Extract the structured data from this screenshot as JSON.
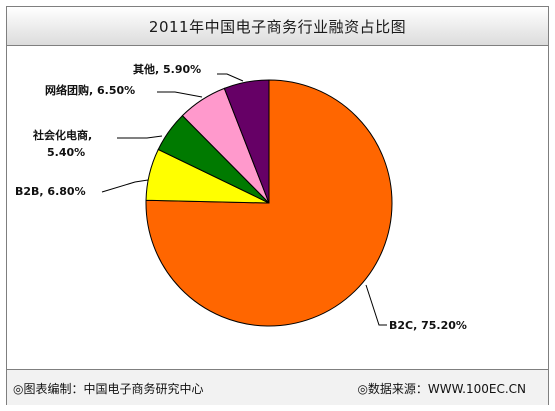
{
  "chart_data": {
    "type": "pie",
    "title": "2011年中国电子商务行业融资占比图",
    "slices": [
      {
        "name": "B2C",
        "value_label": "75.20%",
        "value": 75.2,
        "color": "#ff6600"
      },
      {
        "name": "B2B",
        "value_label": "6.80%",
        "value": 6.8,
        "color": "#ffff00"
      },
      {
        "name": "社会化电商",
        "value_label": "5.40%",
        "value": 5.4,
        "color": "#007a00"
      },
      {
        "name": "网络团购",
        "value_label": "6.50%",
        "value": 6.5,
        "color": "#ff99cc"
      },
      {
        "name": "其他",
        "value_label": "5.90%",
        "value": 5.9,
        "color": "#660066"
      }
    ],
    "labels": {
      "b2c": "B2C, 75.20%",
      "b2b": "B2B, 6.80%",
      "social_1": "社会化电商,",
      "social_2": "5.40%",
      "group": "网络团购, 6.50%",
      "other": "其他, 5.90%"
    }
  },
  "footer": {
    "left": "◎图表编制：中国电子商务研究中心",
    "right": "◎数据来源：WWW.100EC.CN"
  }
}
